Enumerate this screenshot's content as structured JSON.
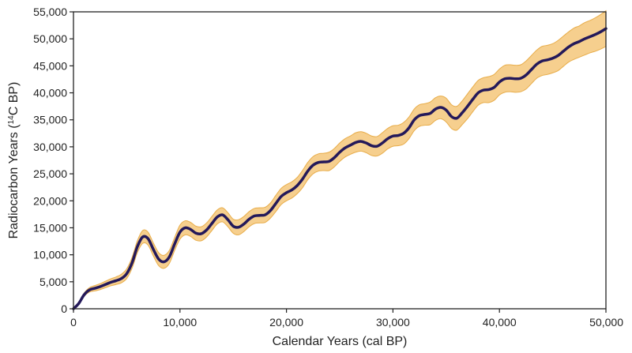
{
  "chart_data": {
    "type": "line",
    "xlabel": "Calendar Years (cal BP)",
    "ylabel": {
      "prefix": "Radiocarbon Years (",
      "superscript": "14",
      "suffix": "C BP)"
    },
    "xlim": [
      0,
      50000
    ],
    "ylim": [
      0,
      55000
    ],
    "xticks": [
      0,
      10000,
      20000,
      30000,
      40000,
      50000
    ],
    "xtick_labels": [
      "0",
      "10,000",
      "20,000",
      "30,000",
      "40,000",
      "50,000"
    ],
    "yticks": [
      0,
      5000,
      10000,
      15000,
      20000,
      25000,
      30000,
      35000,
      40000,
      45000,
      50000,
      55000
    ],
    "ytick_labels": [
      "0",
      "5,000",
      "10,000",
      "15,000",
      "20,000",
      "25,000",
      "30,000",
      "35,000",
      "40,000",
      "45,000",
      "50,000",
      "55,000"
    ],
    "grid": false,
    "legend": "none",
    "colors": {
      "line": "#24195a",
      "band": "#f6cf8e",
      "band_edge": "#e8ad4a"
    },
    "series": [
      {
        "x": [
          0,
          500,
          1000,
          1500,
          2000,
          2500,
          3000,
          3500,
          4000,
          4500,
          5000,
          5500,
          6000,
          6500,
          7000,
          7500,
          8000,
          8500,
          9000,
          9500,
          10000,
          10500,
          11000,
          11500,
          12000,
          12500,
          13000,
          13500,
          14000,
          14500,
          15000,
          15500,
          16000,
          16500,
          17000,
          17500,
          18000,
          18500,
          19000,
          19500,
          20000,
          20500,
          21000,
          21500,
          22000,
          22500,
          23000,
          23500,
          24000,
          24500,
          25000,
          25500,
          26000,
          26500,
          27000,
          27500,
          28000,
          28500,
          29000,
          29500,
          30000,
          30500,
          31000,
          31500,
          32000,
          32500,
          33000,
          33500,
          34000,
          34500,
          35000,
          35500,
          36000,
          36500,
          37000,
          37500,
          38000,
          38500,
          39000,
          39500,
          40000,
          40500,
          41000,
          41500,
          42000,
          42500,
          43000,
          43500,
          44000,
          44500,
          45000,
          45500,
          46000,
          46500,
          47000,
          47500,
          48000,
          48500,
          49000,
          49500,
          50000
        ],
        "y": [
          0,
          1000,
          2600,
          3500,
          3800,
          4100,
          4500,
          4900,
          5200,
          5600,
          6500,
          8500,
          11500,
          13300,
          13000,
          11000,
          9200,
          8700,
          9600,
          12000,
          14200,
          15000,
          14700,
          14000,
          13900,
          14600,
          15800,
          17000,
          17400,
          16500,
          15300,
          15100,
          15700,
          16600,
          17200,
          17300,
          17400,
          18200,
          19500,
          20800,
          21500,
          22000,
          22800,
          24000,
          25500,
          26600,
          27100,
          27200,
          27300,
          28000,
          29000,
          29800,
          30300,
          30800,
          31000,
          30700,
          30200,
          30100,
          30700,
          31500,
          32000,
          32100,
          32500,
          33500,
          35000,
          35800,
          36000,
          36200,
          37000,
          37300,
          36800,
          35600,
          35300,
          36300,
          37500,
          38800,
          40000,
          40500,
          40600,
          41000,
          42000,
          42600,
          42700,
          42600,
          42700,
          43300,
          44300,
          45300,
          45900,
          46100,
          46400,
          46900,
          47700,
          48500,
          49100,
          49500,
          50000,
          50400,
          50800,
          51300,
          51900
        ],
        "band_halfwidth": [
          0,
          150,
          300,
          400,
          500,
          550,
          600,
          650,
          700,
          800,
          900,
          1000,
          1100,
          1200,
          1200,
          1200,
          1200,
          1200,
          1200,
          1200,
          1300,
          1300,
          1300,
          1300,
          1300,
          1300,
          1300,
          1300,
          1300,
          1300,
          1300,
          1400,
          1400,
          1400,
          1400,
          1400,
          1400,
          1400,
          1500,
          1500,
          1500,
          1500,
          1500,
          1600,
          1600,
          1600,
          1600,
          1600,
          1700,
          1700,
          1700,
          1700,
          1700,
          1800,
          1800,
          1800,
          1800,
          1800,
          1900,
          1900,
          1900,
          1900,
          2000,
          2000,
          2000,
          2000,
          2000,
          2100,
          2100,
          2100,
          2200,
          2200,
          2200,
          2200,
          2300,
          2300,
          2300,
          2300,
          2400,
          2400,
          2400,
          2500,
          2500,
          2500,
          2500,
          2600,
          2600,
          2600,
          2700,
          2700,
          2700,
          2800,
          2800,
          2800,
          2900,
          2900,
          3000,
          3000,
          3100,
          3200,
          3300
        ]
      }
    ]
  }
}
